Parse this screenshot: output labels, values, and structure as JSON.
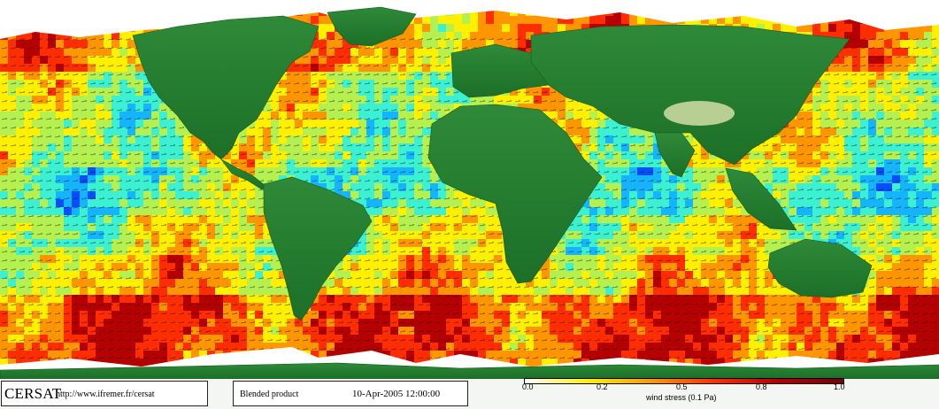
{
  "map": {
    "projection": "equirectangular, world",
    "product": "blended wind stress",
    "colors": {
      "land_low": "#1f7a2c",
      "land_high": "#c9d8a0",
      "ice": "#ffffff",
      "background": "#ffffff",
      "arrows": "#111111"
    },
    "stress_scale": [
      "#0000c8",
      "#0a4cff",
      "#14b4ff",
      "#3cf0d2",
      "#b4f050",
      "#fff000",
      "#ff9600",
      "#ff2d00",
      "#b40000"
    ]
  },
  "footer": {
    "logo": "CERSAT",
    "url": "http://www.ifremer.fr/cersat",
    "product_label": "Blended product",
    "date": "10-Apr-2005 12:00:00"
  },
  "legend": {
    "ticks": [
      "0.0",
      "0.2",
      "0.5",
      "0.8",
      "1.0"
    ],
    "title": "wind stress (0.1 Pa)",
    "gradient": [
      "#ffffff",
      "#fff000",
      "#ff9600",
      "#ff2d00",
      "#b40000",
      "#780000"
    ]
  }
}
